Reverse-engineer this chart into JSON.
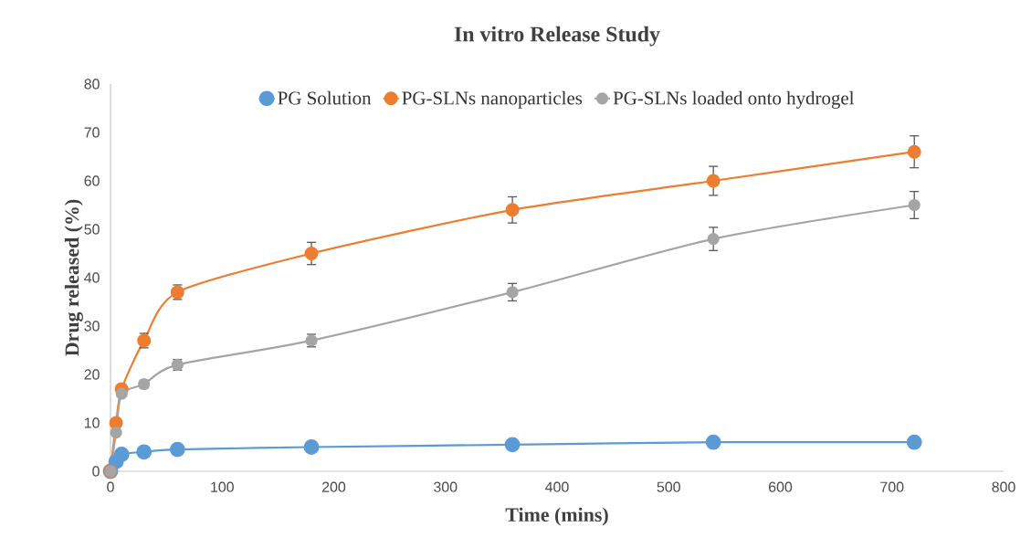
{
  "chart_data": {
    "type": "line",
    "title": "In vitro Release Study",
    "xlabel": "Time (mins)",
    "ylabel": "Drug released (%)",
    "xlim": [
      0,
      800
    ],
    "xticks": [
      0,
      100,
      200,
      300,
      400,
      500,
      600,
      700,
      800
    ],
    "ylim": [
      0,
      80
    ],
    "yticks": [
      0,
      10,
      20,
      30,
      40,
      50,
      60,
      70,
      80
    ],
    "grid": false,
    "legend": "top",
    "marker": "circle",
    "line_style": "solid",
    "series": [
      {
        "name": "PG Solution",
        "color": "#5b9bd5",
        "x": [
          0,
          5,
          10,
          30,
          60,
          180,
          360,
          540,
          720
        ],
        "values": [
          0,
          2,
          3.5,
          4,
          4.5,
          5,
          5.5,
          6,
          6
        ]
      },
      {
        "name": "PG-SLNs nanoparticles",
        "color": "#ed7d31",
        "x": [
          0,
          5,
          10,
          30,
          60,
          180,
          360,
          540,
          720
        ],
        "values": [
          0,
          10,
          17,
          27,
          37,
          45,
          54,
          60,
          66
        ],
        "errors": [
          null,
          null,
          null,
          1.5,
          1.5,
          2.3,
          2.7,
          3,
          3.3
        ]
      },
      {
        "name": "PG-SLNs loaded onto hydrogel",
        "color": "#a5a5a5",
        "x": [
          0,
          5,
          10,
          30,
          60,
          180,
          360,
          540,
          720
        ],
        "values": [
          0,
          8,
          16,
          18,
          22,
          27,
          37,
          48,
          55
        ],
        "errors": [
          null,
          null,
          null,
          0.8,
          1.1,
          1.3,
          1.8,
          2.4,
          2.8
        ]
      }
    ]
  }
}
